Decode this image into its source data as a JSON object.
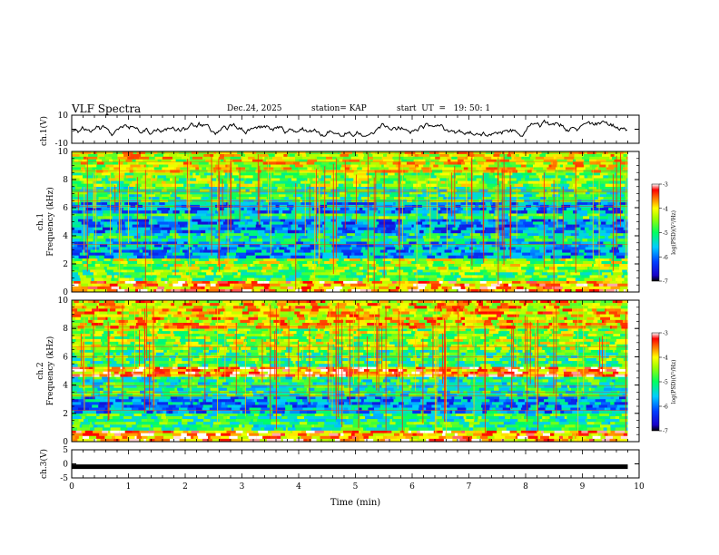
{
  "header": {
    "title": "VLF Spectra",
    "date": "Dec.24, 2025",
    "station": "station= KAP",
    "start": "start  UT  =   19: 50: 1"
  },
  "chart_data": {
    "type": "heatmap",
    "title": "VLF Spectra",
    "date": "Dec.24, 2025",
    "station": "KAP",
    "start_ut": "19:50:1",
    "xlabel": "Time (min)",
    "xlim": [
      0,
      10
    ],
    "xticks": [
      "0",
      "1",
      "2",
      "3",
      "4",
      "5",
      "6",
      "7",
      "8",
      "9",
      "10"
    ],
    "data_end_min": 9.8,
    "panels": [
      {
        "id": "ch1-waveform",
        "type": "line",
        "ylabel": "ch.1(V)",
        "ylim": [
          -10,
          10
        ],
        "yticks": [
          "10",
          "-10"
        ],
        "note": "noisy waveform oscillating roughly between -4 and +6 V"
      },
      {
        "id": "ch1-spectrogram",
        "type": "heatmap",
        "ylabel": "ch.1\nFrequency (kHz)",
        "ylabel_ch": "ch.1",
        "ylabel_freq": "Frequency (kHz)",
        "ylim": [
          0,
          10
        ],
        "yticks": [
          "0",
          "2",
          "4",
          "6",
          "8",
          "10"
        ],
        "colorbar": {
          "label": "log(PSD)(V²/Hz)",
          "range": [
            -7,
            -3
          ],
          "ticks": [
            "-3",
            "-4",
            "-5",
            "-6",
            "-7"
          ]
        },
        "bands": [
          {
            "f": [
              0.0,
              0.8
            ],
            "level": -3.6
          },
          {
            "f": [
              0.8,
              1.6
            ],
            "level": -4.7
          },
          {
            "f": [
              1.6,
              2.4
            ],
            "level": -4.5
          },
          {
            "f": [
              2.4,
              3.6
            ],
            "level": -5.7
          },
          {
            "f": [
              3.6,
              4.2
            ],
            "level": -5.2
          },
          {
            "f": [
              4.2,
              5.2
            ],
            "level": -5.9
          },
          {
            "f": [
              5.2,
              5.6
            ],
            "level": -5.0
          },
          {
            "f": [
              5.6,
              6.4
            ],
            "level": -5.8
          },
          {
            "f": [
              6.4,
              7.5
            ],
            "level": -5.0
          },
          {
            "f": [
              7.5,
              8.5
            ],
            "level": -4.6
          },
          {
            "f": [
              8.5,
              10.0
            ],
            "level": -4.2
          }
        ]
      },
      {
        "id": "ch2-spectrogram",
        "type": "heatmap",
        "ylabel": "ch.2\nFrequency (kHz)",
        "ylabel_ch": "ch.2",
        "ylabel_freq": "Frequency (kHz)",
        "ylim": [
          0,
          10
        ],
        "yticks": [
          "0",
          "2",
          "4",
          "6",
          "8",
          "10"
        ],
        "colorbar": {
          "label": "log(PSD)(V²/Hz)",
          "range": [
            -7,
            -3
          ],
          "ticks": [
            "-3",
            "-4",
            "-5",
            "-6",
            "-7"
          ]
        },
        "bands": [
          {
            "f": [
              0.0,
              0.8
            ],
            "level": -3.6
          },
          {
            "f": [
              0.8,
              2.0
            ],
            "level": -5.0
          },
          {
            "f": [
              2.0,
              3.2
            ],
            "level": -5.8
          },
          {
            "f": [
              3.2,
              4.6
            ],
            "level": -5.1
          },
          {
            "f": [
              4.6,
              5.3
            ],
            "level": -3.6
          },
          {
            "f": [
              5.3,
              6.5
            ],
            "level": -4.9
          },
          {
            "f": [
              6.5,
              8.0
            ],
            "level": -4.5
          },
          {
            "f": [
              8.0,
              10.0
            ],
            "level": -4.0
          }
        ]
      },
      {
        "id": "ch3-waveform",
        "type": "line",
        "ylabel": "ch.3(V)",
        "ylim": [
          -5,
          5
        ],
        "yticks": [
          "5",
          "0",
          "-5"
        ],
        "note": "flat thick line near -1 V"
      }
    ]
  }
}
